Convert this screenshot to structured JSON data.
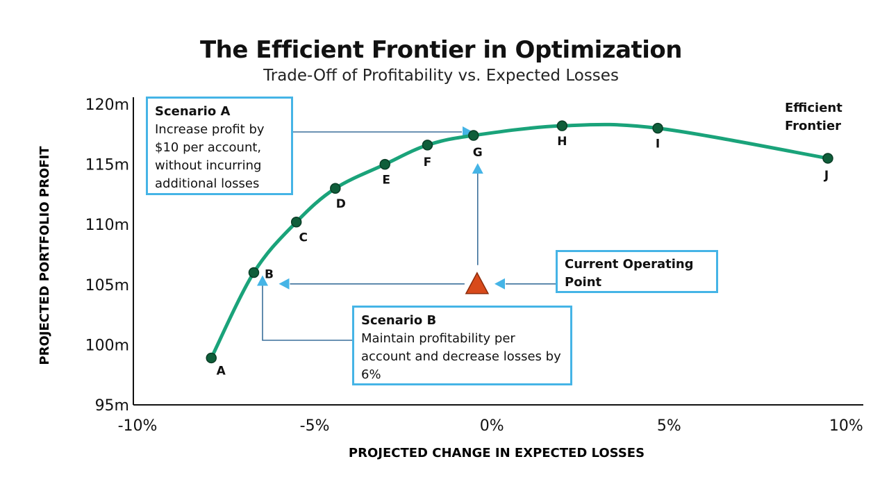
{
  "chart_data": {
    "type": "line",
    "title": "The Efficient Frontier in Optimization",
    "subtitle": "Trade-Off of Profitability vs. Expected Losses",
    "xlabel": "PROJECTED CHANGE IN EXPECTED LOSSES",
    "ylabel": "PROJECTED PORTFOLIO PROFIT",
    "xlim": [
      -10,
      10.6
    ],
    "ylim": [
      95,
      120
    ],
    "x_ticks": [
      -10,
      -5,
      0,
      5,
      10
    ],
    "x_tick_labels": [
      "-10%",
      "-5%",
      "0%",
      "5%",
      "10%"
    ],
    "y_ticks": [
      95,
      100,
      105,
      110,
      115,
      120
    ],
    "y_tick_labels": [
      "95m",
      "100m",
      "105m",
      "110m",
      "115m",
      "120m"
    ],
    "series": [
      {
        "name": "Efficient Frontier",
        "color": "#1aa37a",
        "points": [
          {
            "label": "A",
            "x": -7.8,
            "y": 98.9
          },
          {
            "label": "B",
            "x": -6.6,
            "y": 106.0
          },
          {
            "label": "C",
            "x": -5.4,
            "y": 110.2
          },
          {
            "label": "D",
            "x": -4.3,
            "y": 113.0
          },
          {
            "label": "E",
            "x": -2.9,
            "y": 115.0
          },
          {
            "label": "F",
            "x": -1.7,
            "y": 116.6
          },
          {
            "label": "G",
            "x": -0.4,
            "y": 117.4
          },
          {
            "label": "H",
            "x": 2.1,
            "y": 118.2
          },
          {
            "label": "I",
            "x": 4.8,
            "y": 118.0
          },
          {
            "label": "J",
            "x": 9.6,
            "y": 115.5
          }
        ]
      }
    ],
    "current_point": {
      "x": -0.3,
      "y": 105.0,
      "color": "#d84a1b"
    },
    "annotations": {
      "scenario_a": {
        "title": "Scenario A",
        "text": "Increase profit by $10 per account, without incurring additional losses"
      },
      "scenario_b": {
        "title": "Scenario B",
        "text": "Maintain profitability per account and decrease losses by 6%"
      },
      "current": {
        "text": "Current Operating Point"
      },
      "frontier": {
        "text": "Efficient Frontier"
      }
    },
    "grid": false,
    "accent_color": "#45b4e6"
  }
}
